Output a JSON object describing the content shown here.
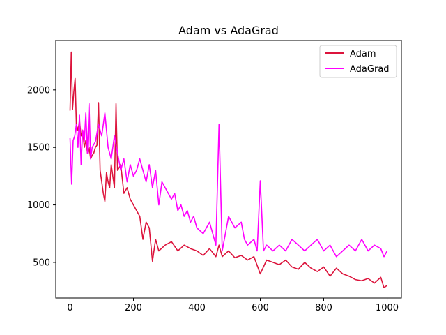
{
  "chart_data": {
    "type": "line",
    "title": "Adam vs AdaGrad",
    "xlabel": "",
    "ylabel": "",
    "xlim": [
      -45,
      1045
    ],
    "ylim": [
      190,
      2430
    ],
    "x_ticks": [
      0,
      200,
      400,
      600,
      800,
      1000
    ],
    "y_ticks": [
      500,
      1000,
      1500,
      2000
    ],
    "grid": false,
    "legend": "top-right",
    "series": [
      {
        "name": "Adam",
        "color": "#dc143c",
        "points": [
          [
            0,
            1820
          ],
          [
            4,
            2330
          ],
          [
            8,
            1830
          ],
          [
            12,
            1980
          ],
          [
            16,
            2100
          ],
          [
            20,
            1700
          ],
          [
            25,
            1650
          ],
          [
            30,
            1730
          ],
          [
            35,
            1600
          ],
          [
            40,
            1650
          ],
          [
            45,
            1500
          ],
          [
            50,
            1560
          ],
          [
            55,
            1450
          ],
          [
            60,
            1500
          ],
          [
            65,
            1400
          ],
          [
            70,
            1430
          ],
          [
            75,
            1450
          ],
          [
            80,
            1500
          ],
          [
            85,
            1520
          ],
          [
            90,
            1890
          ],
          [
            95,
            1300
          ],
          [
            100,
            1200
          ],
          [
            105,
            1100
          ],
          [
            110,
            1030
          ],
          [
            115,
            1280
          ],
          [
            120,
            1200
          ],
          [
            125,
            1150
          ],
          [
            130,
            1350
          ],
          [
            135,
            1250
          ],
          [
            140,
            1150
          ],
          [
            145,
            1880
          ],
          [
            150,
            1300
          ],
          [
            160,
            1350
          ],
          [
            170,
            1100
          ],
          [
            180,
            1150
          ],
          [
            190,
            1050
          ],
          [
            200,
            1000
          ],
          [
            210,
            950
          ],
          [
            220,
            900
          ],
          [
            230,
            700
          ],
          [
            240,
            850
          ],
          [
            250,
            800
          ],
          [
            260,
            510
          ],
          [
            270,
            700
          ],
          [
            280,
            600
          ],
          [
            300,
            650
          ],
          [
            320,
            680
          ],
          [
            340,
            600
          ],
          [
            360,
            650
          ],
          [
            380,
            620
          ],
          [
            400,
            600
          ],
          [
            420,
            560
          ],
          [
            440,
            620
          ],
          [
            460,
            550
          ],
          [
            470,
            650
          ],
          [
            480,
            550
          ],
          [
            500,
            600
          ],
          [
            520,
            540
          ],
          [
            540,
            560
          ],
          [
            560,
            520
          ],
          [
            580,
            550
          ],
          [
            600,
            400
          ],
          [
            620,
            520
          ],
          [
            640,
            500
          ],
          [
            660,
            480
          ],
          [
            680,
            520
          ],
          [
            700,
            460
          ],
          [
            720,
            440
          ],
          [
            740,
            500
          ],
          [
            760,
            450
          ],
          [
            780,
            420
          ],
          [
            800,
            460
          ],
          [
            820,
            380
          ],
          [
            840,
            450
          ],
          [
            860,
            400
          ],
          [
            880,
            380
          ],
          [
            900,
            350
          ],
          [
            920,
            340
          ],
          [
            940,
            360
          ],
          [
            960,
            320
          ],
          [
            980,
            370
          ],
          [
            990,
            280
          ],
          [
            1000,
            300
          ]
        ]
      },
      {
        "name": "AdaGrad",
        "color": "#ff00ff",
        "points": [
          [
            0,
            1580
          ],
          [
            5,
            1180
          ],
          [
            10,
            1560
          ],
          [
            15,
            1600
          ],
          [
            20,
            1700
          ],
          [
            25,
            1500
          ],
          [
            30,
            1780
          ],
          [
            35,
            1350
          ],
          [
            40,
            1650
          ],
          [
            45,
            1550
          ],
          [
            50,
            1800
          ],
          [
            55,
            1450
          ],
          [
            60,
            1880
          ],
          [
            65,
            1400
          ],
          [
            70,
            1500
          ],
          [
            80,
            1550
          ],
          [
            90,
            1700
          ],
          [
            100,
            1600
          ],
          [
            110,
            1800
          ],
          [
            120,
            1500
          ],
          [
            130,
            1400
          ],
          [
            140,
            1600
          ],
          [
            150,
            1450
          ],
          [
            160,
            1300
          ],
          [
            170,
            1400
          ],
          [
            180,
            1200
          ],
          [
            190,
            1350
          ],
          [
            200,
            1250
          ],
          [
            210,
            1300
          ],
          [
            220,
            1400
          ],
          [
            230,
            1300
          ],
          [
            240,
            1200
          ],
          [
            250,
            1350
          ],
          [
            260,
            1150
          ],
          [
            270,
            1300
          ],
          [
            280,
            1000
          ],
          [
            290,
            1200
          ],
          [
            300,
            1150
          ],
          [
            310,
            1100
          ],
          [
            320,
            1050
          ],
          [
            330,
            1100
          ],
          [
            340,
            950
          ],
          [
            350,
            1000
          ],
          [
            360,
            900
          ],
          [
            370,
            950
          ],
          [
            380,
            850
          ],
          [
            390,
            900
          ],
          [
            400,
            800
          ],
          [
            420,
            750
          ],
          [
            440,
            850
          ],
          [
            460,
            650
          ],
          [
            470,
            1700
          ],
          [
            480,
            600
          ],
          [
            500,
            900
          ],
          [
            520,
            800
          ],
          [
            540,
            850
          ],
          [
            550,
            700
          ],
          [
            560,
            650
          ],
          [
            580,
            700
          ],
          [
            590,
            600
          ],
          [
            600,
            1210
          ],
          [
            610,
            600
          ],
          [
            620,
            650
          ],
          [
            640,
            600
          ],
          [
            660,
            650
          ],
          [
            680,
            600
          ],
          [
            700,
            700
          ],
          [
            720,
            650
          ],
          [
            740,
            600
          ],
          [
            760,
            650
          ],
          [
            780,
            700
          ],
          [
            800,
            600
          ],
          [
            820,
            650
          ],
          [
            840,
            550
          ],
          [
            860,
            600
          ],
          [
            880,
            650
          ],
          [
            900,
            600
          ],
          [
            920,
            700
          ],
          [
            940,
            600
          ],
          [
            960,
            650
          ],
          [
            980,
            620
          ],
          [
            990,
            550
          ],
          [
            1000,
            600
          ]
        ]
      }
    ]
  }
}
